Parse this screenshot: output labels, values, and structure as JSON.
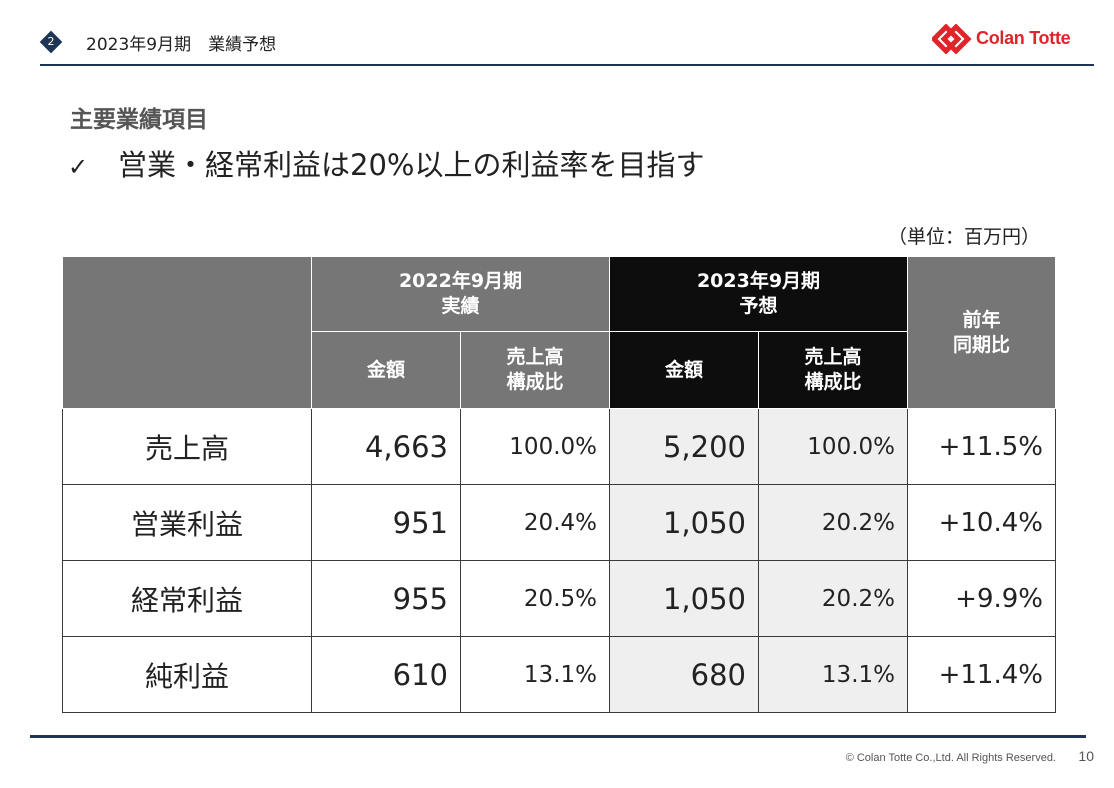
{
  "header": {
    "section_number": "2",
    "title": "2023年9月期　業績予想",
    "logo_text": "Colan Totte",
    "logo_mark": "diamond-logo-icon",
    "brand_color": "#e0242a",
    "accent_color": "#1f3556"
  },
  "main": {
    "section_label": "主要業績項目",
    "check_mark": "✓",
    "headline": "営業・経常利益は20%以上の利益率を目指す",
    "unit": "（単位：百万円）"
  },
  "table": {
    "period_actual": [
      "2022年9月期",
      "実績"
    ],
    "period_forecast": [
      "2023年9月期",
      "予想"
    ],
    "col_amount": "金額",
    "col_ratio": [
      "売上高",
      "構成比"
    ],
    "col_yoy": [
      "前年",
      "同期比"
    ],
    "rows": [
      {
        "label": "売上高",
        "actual_amount": "4,663",
        "actual_ratio": "100.0%",
        "forecast_amount": "5,200",
        "forecast_ratio": "100.0%",
        "yoy": "+11.5%"
      },
      {
        "label": "営業利益",
        "actual_amount": "951",
        "actual_ratio": "20.4%",
        "forecast_amount": "1,050",
        "forecast_ratio": "20.2%",
        "yoy": "+10.4%"
      },
      {
        "label": "経常利益",
        "actual_amount": "955",
        "actual_ratio": "20.5%",
        "forecast_amount": "1,050",
        "forecast_ratio": "20.2%",
        "yoy": "+9.9%"
      },
      {
        "label": "純利益",
        "actual_amount": "610",
        "actual_ratio": "13.1%",
        "forecast_amount": "680",
        "forecast_ratio": "13.1%",
        "yoy": "+11.4%"
      }
    ]
  },
  "footer": {
    "copyright": "© Colan Totte Co.,Ltd. All Rights Reserved.",
    "page_number": "10"
  }
}
